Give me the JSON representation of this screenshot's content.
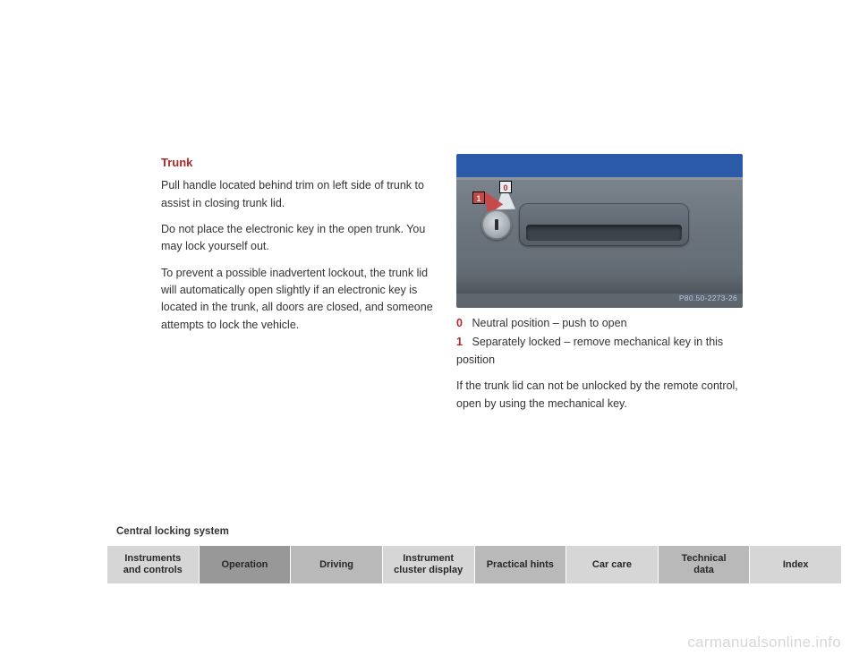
{
  "colors": {
    "heading": "#b02828",
    "body": "#333333",
    "legend0": "#b02828",
    "legend1": "#b02828",
    "label0_bg": "#e9eef2",
    "label0_fg": "#b02828",
    "label1_bg": "#c94747",
    "label1_fg": "#ffffff",
    "sky": "#2b5aa8",
    "watermark": "#b6c9e2",
    "nav_light": "#d6d6d6",
    "nav_mid": "#b9b9b9",
    "nav_dark": "#989898"
  },
  "left": {
    "heading": "Trunk",
    "p1": "Pull handle located behind trim on left side of trunk to assist in closing trunk lid.",
    "p2": "Do not place the electronic key in the open trunk. You may lock yourself out.",
    "p3": "To prevent a possible inadvertent lockout, the trunk lid will automatically open slightly if an electronic key is located in the trunk, all doors are closed, and someone attempts to lock the vehicle."
  },
  "illus": {
    "label0": "0",
    "label1": "1",
    "watermark": "P80.50-2273-26"
  },
  "right": {
    "legend0_num": "0",
    "legend0_text": "Neutral position – push to open",
    "legend1_num": "1",
    "legend1_text": "Separately locked – remove mechanical key in this position",
    "p1": "If the trunk lid can not be unlocked by the remote control, open by using the mechanical key."
  },
  "section_label": "Central locking system",
  "nav": {
    "items": [
      {
        "label": "Instruments\nand controls",
        "shade": "light"
      },
      {
        "label": "Operation",
        "shade": "dark"
      },
      {
        "label": "Driving",
        "shade": "mid"
      },
      {
        "label": "Instrument\ncluster display",
        "shade": "light"
      },
      {
        "label": "Practical hints",
        "shade": "mid"
      },
      {
        "label": "Car care",
        "shade": "light"
      },
      {
        "label": "Technical\ndata",
        "shade": "mid"
      },
      {
        "label": "Index",
        "shade": "light"
      }
    ]
  },
  "footer": "carmanualsonline.info"
}
